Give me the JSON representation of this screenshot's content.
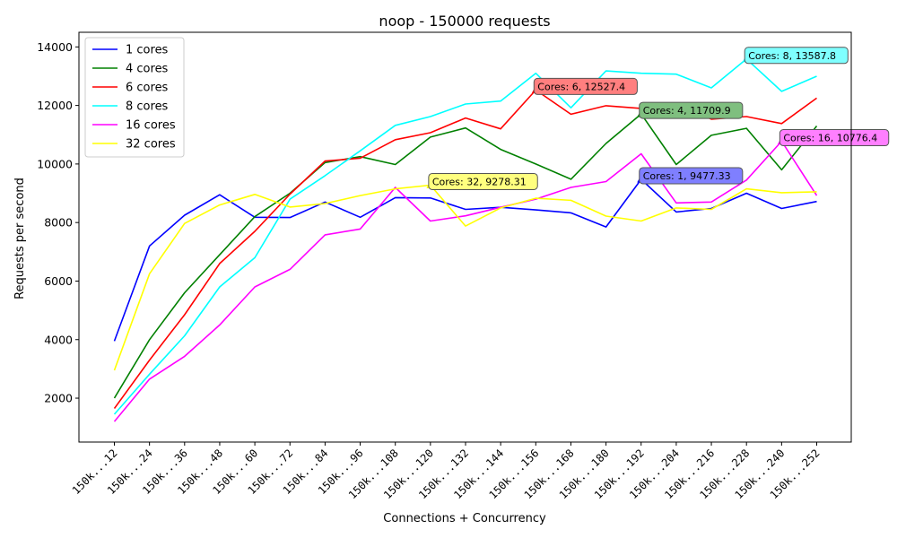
{
  "chart_data": {
    "type": "line",
    "title": "noop - 150000 requests",
    "xlabel": "Connections + Concurrency",
    "ylabel": "Requests per second",
    "ylim": [
      500,
      14500
    ],
    "yticks": [
      2000,
      4000,
      6000,
      8000,
      10000,
      12000,
      14000
    ],
    "legend_position": "top-left",
    "grid": false,
    "categories": [
      "150k...12",
      "150k...24",
      "150k...36",
      "150k...48",
      "150k...60",
      "150k...72",
      "150k...84",
      "150k...96",
      "150k...108",
      "150k...120",
      "150k...132",
      "150k...144",
      "150k...156",
      "150k...168",
      "150k...180",
      "150k...192",
      "150k...204",
      "150k...216",
      "150k...228",
      "150k...240",
      "150k...252"
    ],
    "series": [
      {
        "name": "1 cores",
        "color": "#0000ff",
        "values": [
          3950,
          7200,
          8250,
          8950,
          8180,
          8170,
          8700,
          8180,
          8850,
          8840,
          8450,
          8520,
          8430,
          8330,
          7850,
          9477.33,
          8360,
          8480,
          9000,
          8480,
          8720
        ],
        "max_index": 15,
        "max_label": "Cores: 1, 9477.33",
        "box_color": "#7f7fff"
      },
      {
        "name": "4 cores",
        "color": "#008000",
        "values": [
          2000,
          4000,
          5600,
          6900,
          8200,
          9000,
          10050,
          10250,
          9980,
          10920,
          11230,
          10500,
          10000,
          9480,
          10700,
          11709.9,
          9980,
          10980,
          11220,
          9800,
          11300
        ],
        "max_index": 15,
        "max_label": "Cores: 4, 11709.9",
        "box_color": "#7fbf7f"
      },
      {
        "name": "6 cores",
        "color": "#ff0000",
        "values": [
          1650,
          3300,
          4850,
          6600,
          7700,
          8970,
          10100,
          10200,
          10830,
          11070,
          11570,
          11200,
          12527.4,
          11700,
          11990,
          11900,
          12080,
          11530,
          11620,
          11380,
          12250
        ],
        "max_index": 12,
        "max_label": "Cores: 6, 12527.4",
        "box_color": "#ff7f7f"
      },
      {
        "name": "8 cores",
        "color": "#00ffff",
        "values": [
          1450,
          2820,
          4130,
          5800,
          6800,
          8800,
          9600,
          10450,
          11320,
          11620,
          12050,
          12150,
          13100,
          11920,
          13180,
          13100,
          13070,
          12600,
          13587.8,
          12480,
          13000
        ],
        "max_index": 18,
        "max_label": "Cores: 8, 13587.8",
        "box_color": "#7fffff"
      },
      {
        "name": "16 cores",
        "color": "#ff00ff",
        "values": [
          1200,
          2650,
          3430,
          4500,
          5800,
          6400,
          7580,
          7780,
          9200,
          8050,
          8230,
          8520,
          8800,
          9200,
          9400,
          10350,
          8670,
          8700,
          9450,
          10776.4,
          8920
        ],
        "max_index": 19,
        "max_label": "Cores: 16, 10776.4",
        "box_color": "#ff7fff"
      },
      {
        "name": "32 cores",
        "color": "#ffff00",
        "values": [
          2950,
          6250,
          7970,
          8600,
          8960,
          8530,
          8650,
          8920,
          9150,
          9278.31,
          7880,
          8500,
          8830,
          8760,
          8220,
          8050,
          8500,
          8450,
          9150,
          9020,
          9050
        ],
        "max_index": 9,
        "max_label": "Cores: 32, 9278.31",
        "box_color": "#ffff7f"
      }
    ]
  }
}
